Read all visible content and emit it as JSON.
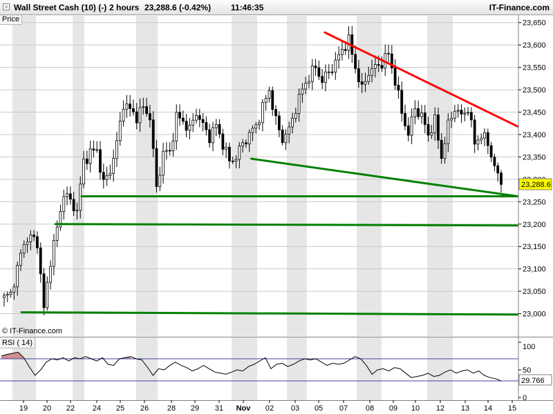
{
  "header": {
    "instrument": "Wall Street Cash (10) (-)",
    "interval": "2 hours",
    "last_quote": "23,288.6 (-0.42%)",
    "time": "11:46:35",
    "brand": "IT-Finance.com"
  },
  "labels": {
    "price_panel": "Price",
    "copyright": "© IT-Finance.com",
    "rsi_panel": "RSI ( 14)"
  },
  "colors": {
    "candle": "#000000",
    "resistance": "#ff0000",
    "support": "#008000",
    "rsi_line": "#000000",
    "rsi_levels": "#4040a0",
    "overbought_fill": "#d09090",
    "weekend_shade": "#e6e6e6",
    "grid": "#c8c8c8",
    "last_price_box": "#ffff00"
  },
  "chart_data": [
    {
      "type": "candlestick",
      "panel": "price",
      "yaxis_side": "right",
      "ylim": [
        22950,
        23665
      ],
      "y_ticks": [
        23000,
        23050,
        23100,
        23150,
        23200,
        23250,
        23300,
        23350,
        23400,
        23450,
        23500,
        23550,
        23600,
        23650
      ],
      "y_tick_labels": [
        "23,000",
        "23,050",
        "23,100",
        "23,150",
        "23,200",
        "23,250",
        "23,300",
        "23,350",
        "23,400",
        "23,450",
        "23,500",
        "23,550",
        "23,600",
        "23,650"
      ],
      "grid": true,
      "x_labels": [
        "19",
        "20",
        "22",
        "24",
        "25",
        "26",
        "28",
        "29",
        "31",
        "Nov",
        "02",
        "03",
        "05",
        "07",
        "08",
        "09",
        "10",
        "12",
        "13",
        "14",
        "15"
      ],
      "last_price": 23288.6,
      "last_price_label": "23,288.6",
      "close_path": [
        [
          0,
          23035
        ],
        [
          2,
          23045
        ],
        [
          4,
          23100
        ],
        [
          6,
          23160
        ],
        [
          8,
          23170
        ],
        [
          10,
          23160
        ],
        [
          12,
          23010
        ],
        [
          14,
          23120
        ],
        [
          16,
          23190
        ],
        [
          18,
          23270
        ],
        [
          20,
          23250
        ],
        [
          22,
          23230
        ],
        [
          24,
          23340
        ],
        [
          26,
          23360
        ],
        [
          28,
          23365
        ],
        [
          30,
          23290
        ],
        [
          32,
          23320
        ],
        [
          34,
          23380
        ],
        [
          36,
          23470
        ],
        [
          38,
          23455
        ],
        [
          40,
          23440
        ],
        [
          42,
          23460
        ],
        [
          44,
          23440
        ],
        [
          46,
          23280
        ],
        [
          48,
          23360
        ],
        [
          50,
          23360
        ],
        [
          52,
          23440
        ],
        [
          54,
          23430
        ],
        [
          56,
          23410
        ],
        [
          58,
          23450
        ],
        [
          60,
          23420
        ],
        [
          62,
          23395
        ],
        [
          64,
          23420
        ],
        [
          66,
          23380
        ],
        [
          68,
          23340
        ],
        [
          70,
          23350
        ],
        [
          72,
          23380
        ],
        [
          74,
          23400
        ],
        [
          76,
          23420
        ],
        [
          78,
          23460
        ],
        [
          80,
          23500
        ],
        [
          82,
          23430
        ],
        [
          84,
          23390
        ],
        [
          86,
          23410
        ],
        [
          88,
          23460
        ],
        [
          90,
          23500
        ],
        [
          92,
          23530
        ],
        [
          94,
          23550
        ],
        [
          96,
          23520
        ],
        [
          98,
          23540
        ],
        [
          100,
          23560
        ],
        [
          102,
          23590
        ],
        [
          104,
          23610
        ],
        [
          106,
          23550
        ],
        [
          108,
          23500
        ],
        [
          110,
          23540
        ],
        [
          112,
          23550
        ],
        [
          114,
          23560
        ],
        [
          116,
          23580
        ],
        [
          118,
          23520
        ],
        [
          120,
          23450
        ],
        [
          122,
          23400
        ],
        [
          124,
          23460
        ],
        [
          126,
          23440
        ],
        [
          128,
          23400
        ],
        [
          130,
          23430
        ],
        [
          132,
          23350
        ],
        [
          134,
          23420
        ],
        [
          136,
          23460
        ],
        [
          138,
          23440
        ],
        [
          140,
          23460
        ],
        [
          142,
          23380
        ],
        [
          144,
          23400
        ],
        [
          146,
          23380
        ],
        [
          148,
          23330
        ],
        [
          150,
          23280
        ]
      ],
      "lines": [
        {
          "name": "",
          "kind": "resistance",
          "color": "red",
          "from": [
            23628,
            0.6265
          ],
          "to": [
            23418,
            0.9987
          ]
        },
        {
          "name": "",
          "kind": "support",
          "color": "green",
          "from": [
            23346,
            0.4846
          ],
          "to": [
            23262,
            0.9987
          ]
        },
        {
          "name": "",
          "kind": "support",
          "color": "green",
          "from": [
            23262,
            0.1571
          ],
          "to": [
            23262,
            0.9987
          ]
        },
        {
          "name": "",
          "kind": "support",
          "color": "green",
          "from": [
            23200,
            0.1068
          ],
          "to": [
            23197,
            0.9987
          ]
        },
        {
          "name": "",
          "kind": "support",
          "color": "green",
          "from": [
            23003,
            0.0415
          ],
          "to": [
            22998,
            0.9987
          ]
        }
      ]
    },
    {
      "type": "line",
      "panel": "rsi",
      "series_label": "RSI ( 14)",
      "ylim": [
        0,
        100
      ],
      "y_ticks": [
        0,
        50,
        100
      ],
      "y_tick_labels": [
        "0",
        "50",
        "100"
      ],
      "levels": [
        30,
        70
      ],
      "last_value": 29.766,
      "last_value_label": "29.766",
      "values": [
        75,
        78,
        80,
        82,
        72,
        55,
        40,
        50,
        64,
        70,
        68,
        72,
        66,
        72,
        70,
        74,
        70,
        66,
        72,
        60,
        58,
        70,
        72,
        74,
        70,
        68,
        55,
        40,
        52,
        50,
        58,
        64,
        58,
        54,
        48,
        52,
        58,
        52,
        46,
        44,
        42,
        46,
        50,
        48,
        56,
        60,
        66,
        72,
        52,
        60,
        62,
        56,
        60,
        66,
        70,
        68,
        70,
        64,
        58,
        62,
        60,
        62,
        68,
        74,
        70,
        58,
        42,
        50,
        52,
        48,
        54,
        52,
        44,
        36,
        38,
        40,
        44,
        38,
        40,
        46,
        50,
        44,
        48,
        50,
        44,
        48,
        40,
        36,
        34,
        30
      ]
    }
  ]
}
